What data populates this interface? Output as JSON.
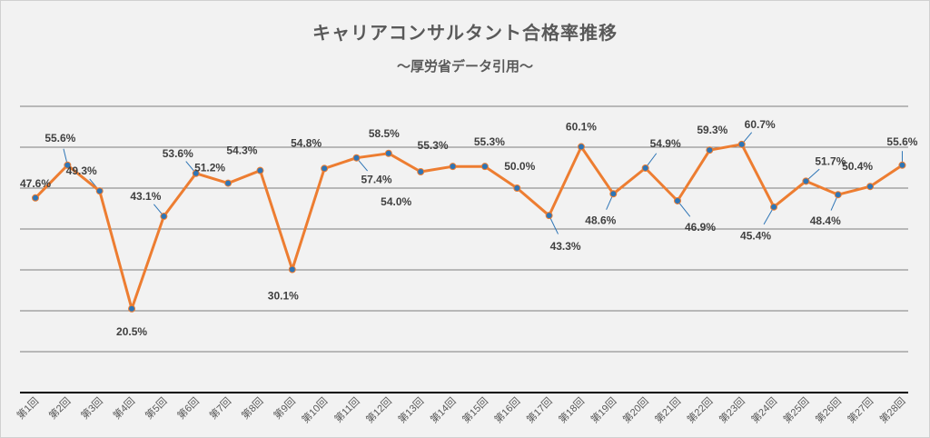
{
  "chart_data": {
    "type": "line",
    "title": "キャリアコンサルタント合格率推移",
    "subtitle": "～厚労省データ引用～",
    "categories": [
      "第1回",
      "第2回",
      "第3回",
      "第4回",
      "第5回",
      "第6回",
      "第7回",
      "第8回",
      "第9回",
      "第10回",
      "第11回",
      "第12回",
      "第13回",
      "第14回",
      "第15回",
      "第16回",
      "第17回",
      "第18回",
      "第19回",
      "第20回",
      "第21回",
      "第22回",
      "第23回",
      "第24回",
      "第25回",
      "第26回",
      "第27回",
      "第28回"
    ],
    "series": [
      {
        "values": [
          47.6,
          55.6,
          49.3,
          20.5,
          43.1,
          53.6,
          51.2,
          54.3,
          30.1,
          54.8,
          57.4,
          58.5,
          54.0,
          55.3,
          55.3,
          50.0,
          43.3,
          60.1,
          48.6,
          54.9,
          46.9,
          59.3,
          60.7,
          45.4,
          51.7,
          48.4,
          50.4,
          55.6
        ]
      }
    ],
    "data_labels": [
      "47.6%",
      "55.6%",
      "49.3%",
      "20.5%",
      "43.1%",
      "53.6%",
      "51.2%",
      "54.3%",
      "30.1%",
      "54.8%",
      "57.4%",
      "58.5%",
      "54.0%",
      "55.3%",
      "55.3%",
      "50.0%",
      "43.3%",
      "60.1%",
      "48.6%",
      "54.9%",
      "46.9%",
      "59.3%",
      "60.7%",
      "45.4%",
      "51.7%",
      "48.4%",
      "50.4%",
      "55.6%"
    ],
    "ylim": [
      0,
      70
    ],
    "grid": true,
    "colors": {
      "line": "#ed7d31",
      "marker": "#2e75b6",
      "leader": "#2e75b6",
      "grid": "#7f7f7f",
      "axis": "#000000",
      "text": "#404040"
    }
  }
}
